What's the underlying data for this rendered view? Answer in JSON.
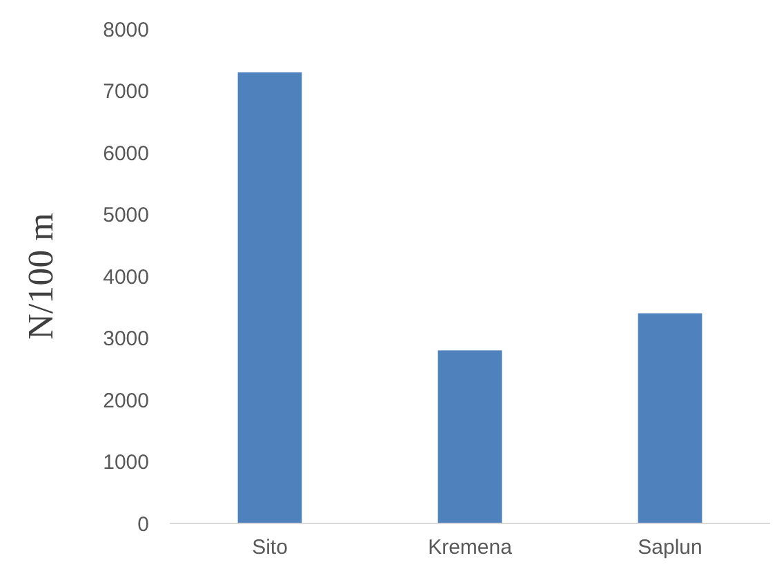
{
  "chart_data": {
    "type": "bar",
    "ylabel": "N/100 m",
    "categories": [
      "Sito",
      "Kremena",
      "Saplun"
    ],
    "values": [
      7300,
      2800,
      3400
    ],
    "color": "#4f81bd",
    "ylim": [
      0,
      8000
    ],
    "yticks": [
      0,
      1000,
      2000,
      3000,
      4000,
      5000,
      6000,
      7000,
      8000
    ],
    "grid": false
  }
}
